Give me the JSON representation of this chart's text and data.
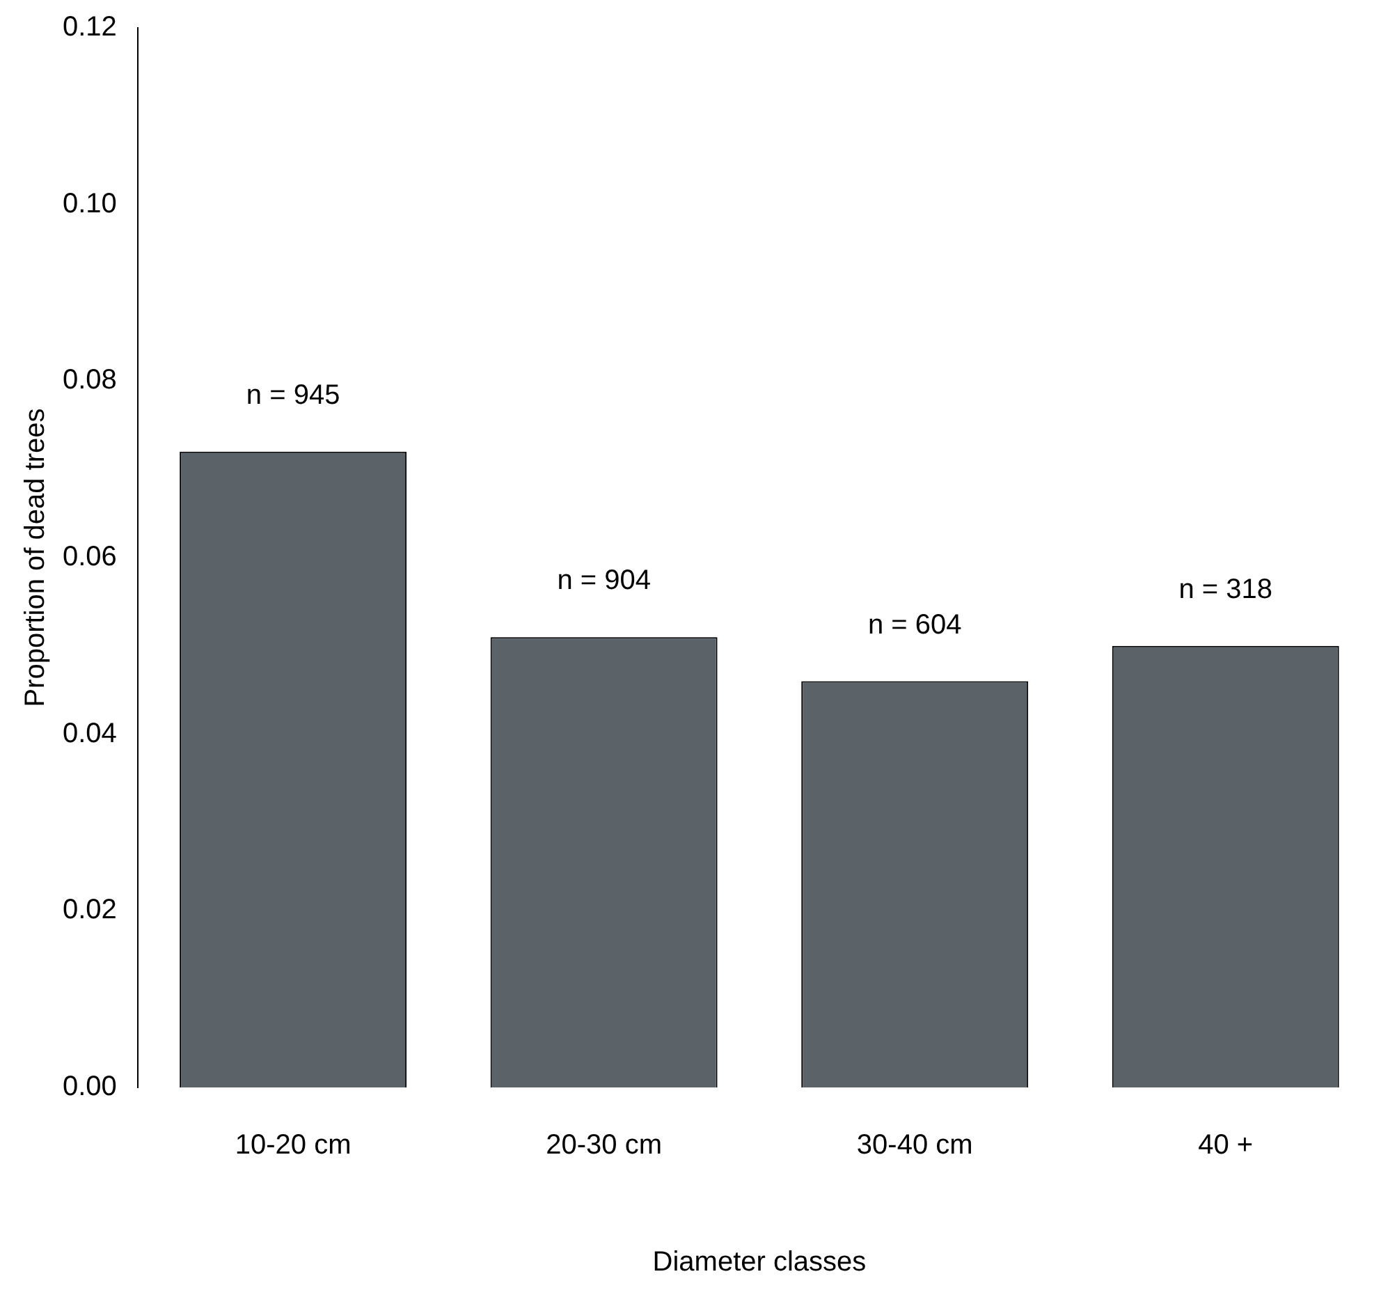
{
  "chart_data": {
    "type": "bar",
    "xlabel": "Diameter classes",
    "ylabel": "Proportion of dead trees",
    "categories": [
      "10-20 cm",
      "20-30 cm",
      "30-40 cm",
      "40 +"
    ],
    "values": [
      0.072,
      0.051,
      0.046,
      0.05
    ],
    "color": "#5b6369",
    "ylim": [
      0,
      0.12
    ],
    "yticks": [
      {
        "value": 0,
        "label": "0.00"
      },
      {
        "value": 0.02,
        "label": "0.02"
      },
      {
        "value": 0.04,
        "label": "0.04"
      },
      {
        "value": 0.06,
        "label": "0.06"
      },
      {
        "value": 0.08,
        "label": "0.08"
      },
      {
        "value": 0.1,
        "label": "0.10"
      },
      {
        "value": 0.12,
        "label": "0.12"
      }
    ],
    "grid": false,
    "legend": false,
    "annotations": [
      "n = 945",
      "n = 904",
      "n = 604",
      "n = 318"
    ]
  }
}
